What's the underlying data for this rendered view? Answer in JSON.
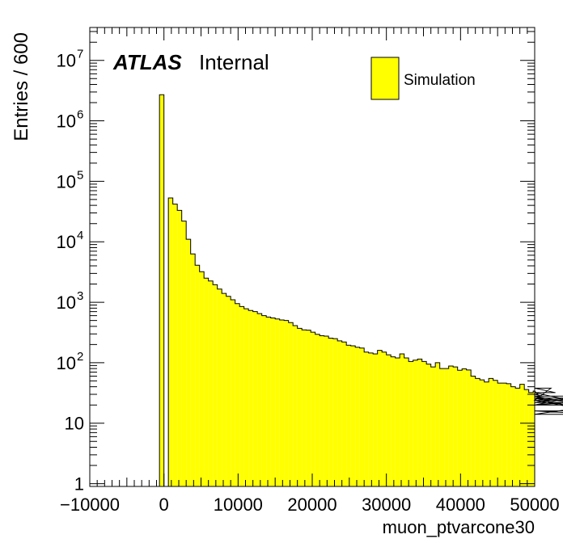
{
  "chart_data": {
    "type": "bar",
    "style": "histogram-step",
    "title": "",
    "xlabel": "muon_ptvarcone30",
    "ylabel": "Entries / 600",
    "yscale": "log",
    "xlim": [
      -10000,
      50000
    ],
    "ylim": [
      0.9,
      35000000
    ],
    "bin_width": 600,
    "fill_color": "#ffff00",
    "line_color": "#000000",
    "x_ticks": [
      -10000,
      0,
      10000,
      20000,
      30000,
      40000,
      50000
    ],
    "x_tick_labels": [
      "−10000",
      "0",
      "10000",
      "20000",
      "30000",
      "40000",
      "50000"
    ],
    "y_ticks": [
      1,
      10,
      100,
      1000,
      10000,
      100000,
      1000000,
      10000000
    ],
    "y_tick_labels": [
      {
        "base": "1",
        "exp": ""
      },
      {
        "base": "10",
        "exp": ""
      },
      {
        "base": "10",
        "exp": "2"
      },
      {
        "base": "10",
        "exp": "3"
      },
      {
        "base": "10",
        "exp": "4"
      },
      {
        "base": "10",
        "exp": "5"
      },
      {
        "base": "10",
        "exp": "6"
      },
      {
        "base": "10",
        "exp": "7"
      }
    ],
    "legend": {
      "placement": "top-right",
      "entries": [
        {
          "label": "Simulation",
          "color": "#ffff00"
        }
      ]
    },
    "annotation": {
      "bold": "ATLAS",
      "normal": "Internal",
      "placement": "top-left"
    },
    "series": [
      {
        "name": "Simulation",
        "bin_edges_start": -600,
        "values": [
          2700000,
          0,
          53000,
          42000,
          33000,
          22000,
          11000,
          6300,
          4100,
          3200,
          2500,
          2250,
          1950,
          1650,
          1400,
          1250,
          1100,
          950,
          850,
          780,
          730,
          700,
          650,
          600,
          570,
          550,
          530,
          510,
          500,
          460,
          410,
          370,
          350,
          345,
          320,
          295,
          280,
          275,
          255,
          250,
          230,
          220,
          195,
          190,
          180,
          175,
          150,
          145,
          140,
          160,
          150,
          135,
          125,
          120,
          140,
          120,
          105,
          110,
          115,
          105,
          95,
          85,
          100,
          80,
          80,
          88,
          85,
          75,
          79,
          76,
          60,
          55,
          52,
          48,
          55,
          51,
          46,
          46,
          45,
          40,
          38,
          44,
          36,
          32,
          34,
          30,
          28,
          24,
          38,
          32,
          26,
          20,
          26,
          22,
          28,
          20,
          24,
          16,
          14,
          20,
          24
        ]
      }
    ]
  }
}
